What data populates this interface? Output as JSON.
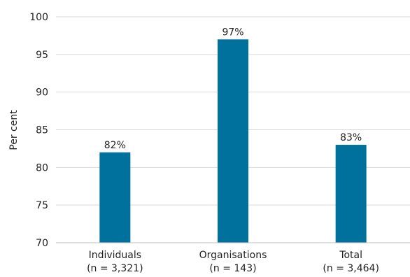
{
  "chart_data": {
    "type": "bar",
    "ylabel": "Per cent",
    "ylim": [
      70,
      100
    ],
    "yticks": [
      70,
      75,
      80,
      85,
      90,
      95,
      100
    ],
    "grid": true,
    "bar_color": "#00719c",
    "categories": [
      {
        "label": "Individuals",
        "sublabel": "(n = 3,321)",
        "value": 82,
        "data_label": "82%"
      },
      {
        "label": "Organisations",
        "sublabel": "(n = 143)",
        "value": 97,
        "data_label": "97%"
      },
      {
        "label": "Total",
        "sublabel": "(n = 3,464)",
        "value": 83,
        "data_label": "83%"
      }
    ]
  }
}
